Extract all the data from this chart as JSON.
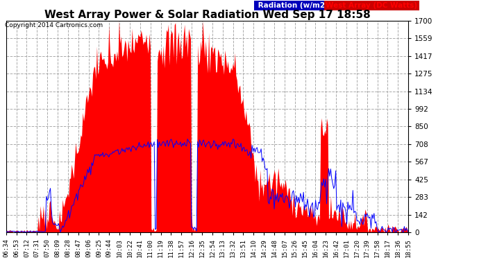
{
  "title": "West Array Power & Solar Radiation Wed Sep 17 18:58",
  "copyright": "Copyright 2014 Cartronics.com",
  "legend_radiation": "Radiation (w/m2)",
  "legend_west_array": "West Array (DC Watts)",
  "ymax": 1700.3,
  "ymin": 0.0,
  "yticks": [
    0.0,
    141.7,
    283.4,
    425.1,
    566.8,
    708.5,
    850.2,
    991.9,
    1133.6,
    1275.3,
    1417.0,
    1558.6,
    1700.3
  ],
  "bg_color": "#ffffff",
  "plot_bg_color": "#ffffff",
  "grid_color": "#d0d0d0",
  "red_color": "#ff0000",
  "blue_color": "#0000ff",
  "title_color": "#000000",
  "tick_color": "#000000",
  "n_points": 400,
  "x_tick_labels": [
    "06:34",
    "06:53",
    "07:12",
    "07:31",
    "07:50",
    "08:09",
    "08:28",
    "08:47",
    "09:06",
    "09:25",
    "09:44",
    "10:03",
    "10:22",
    "10:41",
    "11:00",
    "11:19",
    "11:38",
    "11:57",
    "12:16",
    "12:35",
    "12:54",
    "13:13",
    "13:32",
    "13:51",
    "14:10",
    "14:29",
    "14:48",
    "15:07",
    "15:26",
    "15:45",
    "16:04",
    "16:23",
    "16:42",
    "17:01",
    "17:20",
    "17:39",
    "17:58",
    "18:17",
    "18:36",
    "18:55"
  ]
}
